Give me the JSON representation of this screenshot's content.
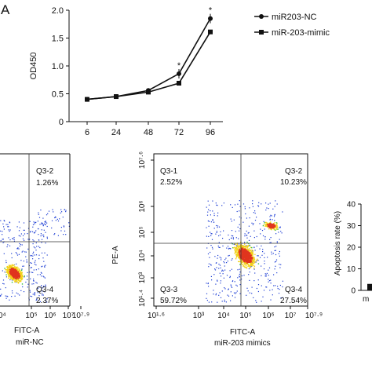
{
  "panel_label": "A",
  "chart_data": [
    {
      "type": "line",
      "ylabel": "OD450",
      "x": [
        6,
        24,
        48,
        72,
        96
      ],
      "ylim": [
        0,
        2.0
      ],
      "y_ticks": [
        "0",
        "0.5",
        "1.0",
        "1.5",
        "2.0"
      ],
      "x_ticks": [
        "6",
        "24",
        "48",
        "72",
        "96"
      ],
      "series": [
        {
          "name": "miR203-NC",
          "values": [
            0.4,
            0.45,
            0.56,
            0.86,
            1.85
          ],
          "marker": "circle"
        },
        {
          "name": "miR-203-mimic",
          "values": [
            0.4,
            0.45,
            0.53,
            0.69,
            1.61
          ],
          "marker": "square"
        }
      ],
      "significance": [
        {
          "x": 72,
          "label": "*"
        },
        {
          "x": 96,
          "label": "*"
        }
      ],
      "legend_position": "top-right"
    },
    {
      "type": "scatter",
      "xlabel": "FITC-A",
      "sample": "miR-NC",
      "x_ticks": [
        "10⁴",
        "10⁵",
        "10⁶",
        "10⁷",
        "10⁷·⁹"
      ],
      "quadrants": {
        "Q3-2": "1.26%",
        "Q3-4": "2.37%"
      }
    },
    {
      "type": "scatter",
      "xlabel": "FITC-A",
      "ylabel": "PE-A",
      "sample": "miR-203 mimics",
      "x_ticks": [
        "10¹·⁶",
        "10³",
        "10⁴",
        "10⁵",
        "10⁶",
        "10⁷",
        "10⁷·⁹"
      ],
      "y_ticks": [
        "10¹·⁴",
        "10³",
        "10⁴",
        "10⁵",
        "10⁶",
        "10⁷·⁶"
      ],
      "quadrants": {
        "Q3-1": "2.52%",
        "Q3-2": "10.23%",
        "Q3-3": "59.72%",
        "Q3-4": "27.54%"
      }
    },
    {
      "type": "bar",
      "ylabel": "Apoptosis rate (%)",
      "ylim": [
        0,
        40
      ],
      "y_ticks": [
        "0",
        "10",
        "20",
        "30",
        "40"
      ],
      "categories": [
        "m"
      ],
      "values": [
        3
      ]
    }
  ],
  "colors": {
    "axis": "#111111",
    "dots_blue": "#1f3fd4",
    "dots_green": "#2fbf3a",
    "dots_yellow": "#f2d21b",
    "dots_red": "#e0351e"
  }
}
